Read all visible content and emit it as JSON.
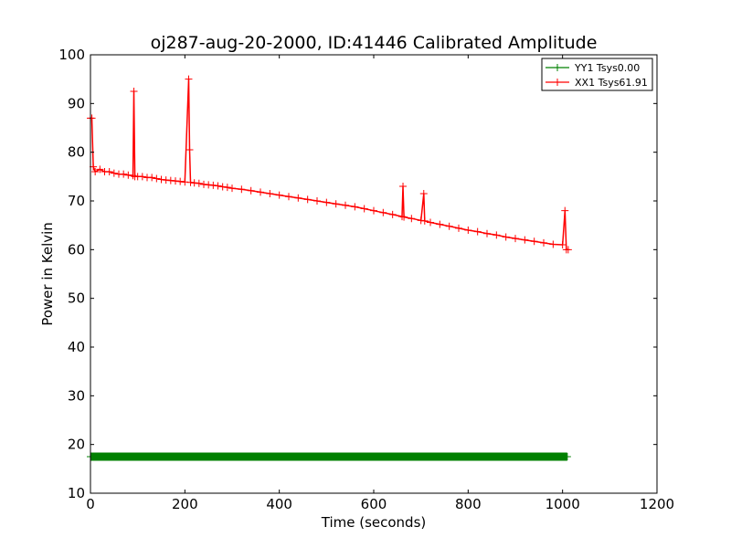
{
  "chart_data": {
    "type": "line",
    "title": "oj287-aug-20-2000, ID:41446 Calibrated Amplitude",
    "xlabel": "Time (seconds)",
    "ylabel": "Power in Kelvin",
    "xlim": [
      0,
      1200
    ],
    "ylim": [
      10,
      100
    ],
    "xticks": [
      "0",
      "200",
      "400",
      "600",
      "800",
      "1000",
      "1200"
    ],
    "yticks": [
      "10",
      "20",
      "30",
      "40",
      "50",
      "60",
      "70",
      "80",
      "90",
      "100"
    ],
    "grid": false,
    "legend_position": "top-right",
    "series": [
      {
        "name": "YY1 Tsys0.00",
        "color": "#008000",
        "marker": "+",
        "x": [
          0,
          50,
          100,
          150,
          200,
          250,
          300,
          350,
          400,
          450,
          500,
          550,
          600,
          650,
          700,
          750,
          800,
          850,
          900,
          950,
          1010
        ],
        "y": [
          17.5,
          17.5,
          17.5,
          17.5,
          17.5,
          17.5,
          17.5,
          17.5,
          17.5,
          17.5,
          17.5,
          17.5,
          17.5,
          17.5,
          17.5,
          17.5,
          17.5,
          17.5,
          17.5,
          17.5,
          17.5
        ]
      },
      {
        "name": "XX1 Tsys61.91",
        "color": "#ff0000",
        "marker": "+",
        "x": [
          0,
          3,
          6,
          10,
          20,
          30,
          40,
          50,
          60,
          70,
          80,
          90,
          92,
          94,
          100,
          110,
          120,
          130,
          140,
          150,
          160,
          170,
          180,
          190,
          200,
          208,
          210,
          212,
          220,
          230,
          240,
          250,
          260,
          270,
          280,
          290,
          300,
          320,
          340,
          360,
          380,
          400,
          420,
          440,
          460,
          480,
          500,
          520,
          540,
          560,
          580,
          600,
          620,
          640,
          660,
          662,
          664,
          680,
          700,
          706,
          708,
          720,
          740,
          760,
          780,
          800,
          820,
          840,
          860,
          880,
          900,
          920,
          940,
          960,
          980,
          1000,
          1005,
          1008,
          1012
        ],
        "y": [
          87,
          87,
          77,
          76,
          76.5,
          76,
          76,
          75.7,
          75.5,
          75.5,
          75.3,
          75.2,
          92.5,
          75,
          75,
          75,
          74.8,
          74.8,
          74.6,
          74.4,
          74.3,
          74.2,
          74.1,
          74,
          73.9,
          95,
          80.5,
          73.8,
          73.7,
          73.6,
          73.4,
          73.3,
          73.2,
          73.1,
          72.9,
          72.8,
          72.6,
          72.4,
          72.1,
          71.8,
          71.5,
          71.2,
          70.9,
          70.6,
          70.3,
          70,
          69.7,
          69.4,
          69.1,
          68.8,
          68.4,
          68,
          67.6,
          67.2,
          66.8,
          73,
          66.7,
          66.4,
          66,
          71.5,
          65.9,
          65.6,
          65.2,
          64.8,
          64.4,
          64,
          63.7,
          63.3,
          63,
          62.6,
          62.3,
          62,
          61.7,
          61.4,
          61.1,
          61,
          68,
          60,
          60
        ]
      }
    ]
  }
}
